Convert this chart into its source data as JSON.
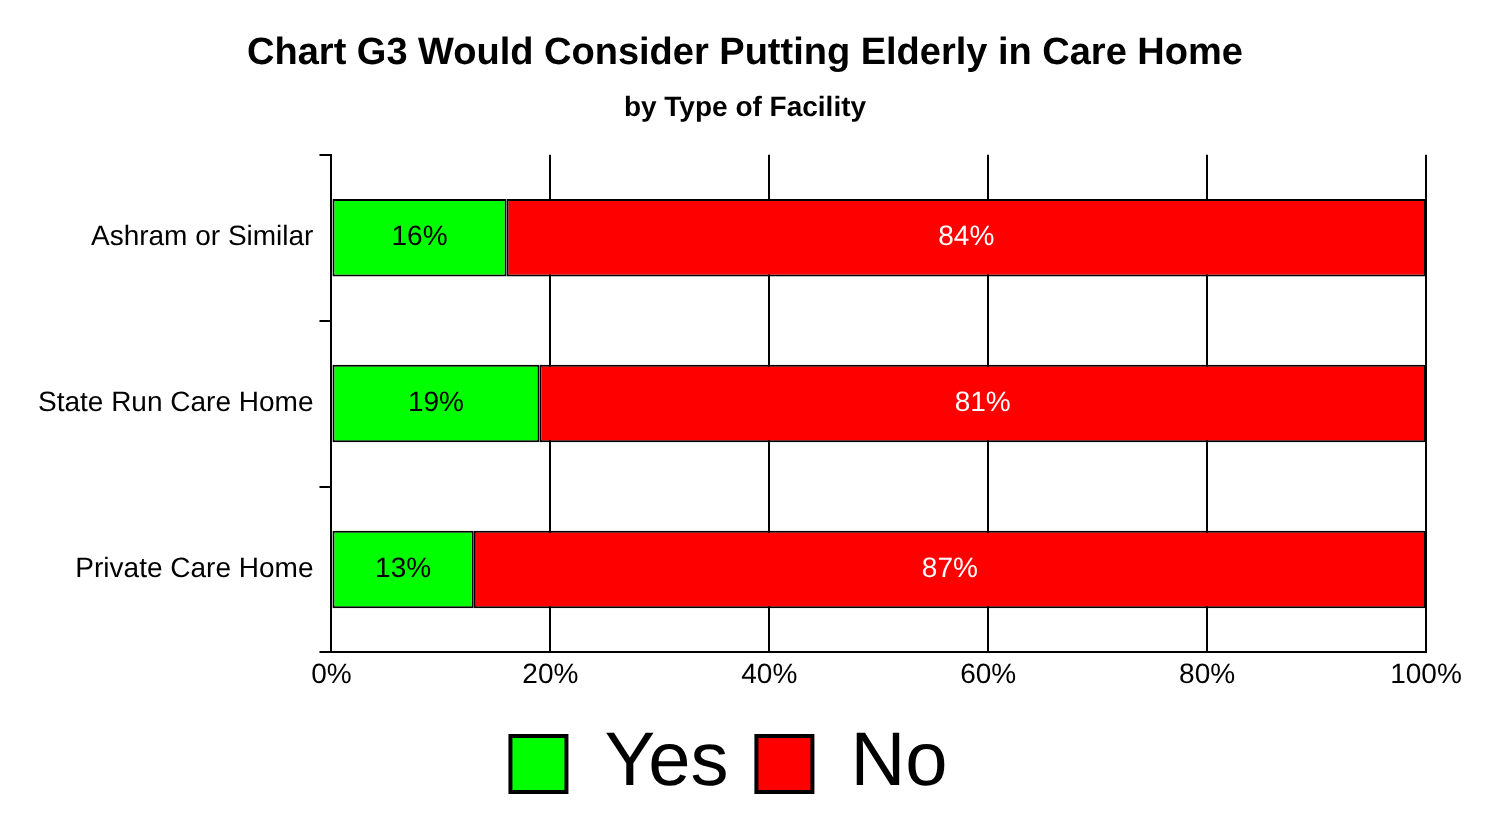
{
  "chart_data": {
    "type": "bar",
    "orientation": "horizontal",
    "stacked": true,
    "title": "Chart G3 Would Consider Putting Elderly in Care Home",
    "subtitle": "by Type of Facility",
    "categories": [
      "Ashram or Similar",
      "State Run Care Home",
      "Private Care Home"
    ],
    "series": [
      {
        "name": "Yes",
        "color": "#00ff00",
        "values": [
          16,
          19,
          13
        ],
        "value_labels": [
          "16%",
          "19%",
          "13%"
        ]
      },
      {
        "name": "No",
        "color": "#ff0000",
        "values": [
          84,
          81,
          87
        ],
        "value_labels": [
          "84%",
          "81%",
          "87%"
        ]
      }
    ],
    "xlim": [
      0,
      100
    ],
    "xticks": [
      {
        "value": 0,
        "label": "0%"
      },
      {
        "value": 20,
        "label": "20%"
      },
      {
        "value": 40,
        "label": "40%"
      },
      {
        "value": 60,
        "label": "60%"
      },
      {
        "value": 80,
        "label": "80%"
      },
      {
        "value": 100,
        "label": "100%"
      }
    ],
    "grid": "x",
    "legend": "bottom"
  }
}
